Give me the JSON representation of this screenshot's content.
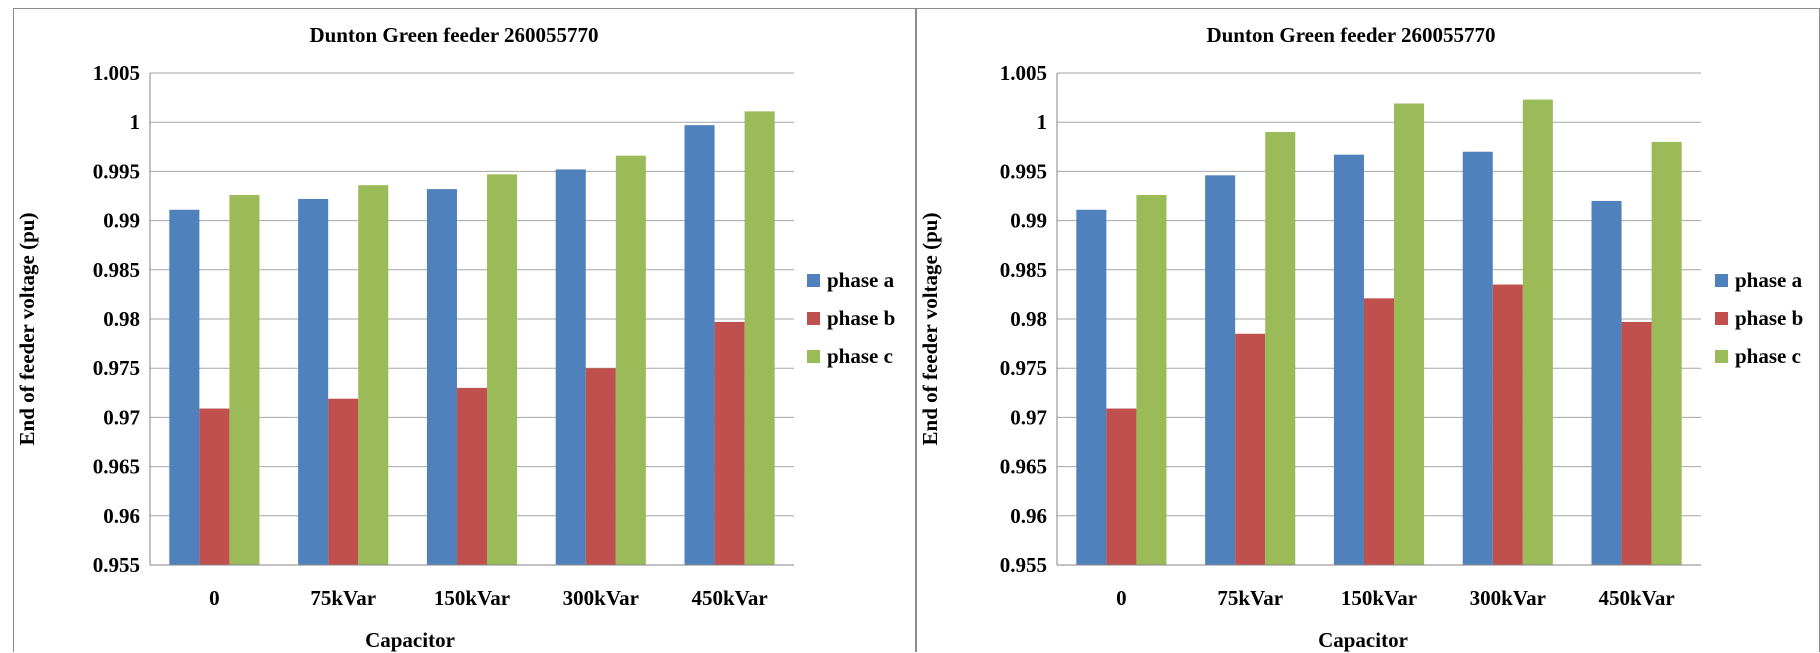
{
  "colors": {
    "phase_a": "#4F81BD",
    "phase_b": "#C0504D",
    "phase_c": "#9BBB59",
    "grid": "#A6A6A6"
  },
  "chart_data": [
    {
      "type": "bar",
      "title": "Dunton Green feeder 260055770",
      "xlabel": "Capacitor",
      "ylabel": "End of feeder voltage (pu)",
      "categories": [
        "0",
        "75kVar",
        "150kVar",
        "300kVar",
        "450kVar"
      ],
      "ylim": [
        0.955,
        1.005
      ],
      "yticks": [
        "0.955",
        "0.96",
        "0.965",
        "0.97",
        "0.975",
        "0.98",
        "0.985",
        "0.99",
        "0.995",
        "1",
        "1.005"
      ],
      "grid": true,
      "legend_position": "right",
      "series": [
        {
          "name": "phase a",
          "values": [
            0.9911,
            0.9922,
            0.9932,
            0.9952,
            0.9997
          ]
        },
        {
          "name": "phase b",
          "values": [
            0.9709,
            0.9719,
            0.973,
            0.975,
            0.9797
          ]
        },
        {
          "name": "phase c",
          "values": [
            0.9926,
            0.9936,
            0.9947,
            0.9966,
            1.0011
          ]
        }
      ]
    },
    {
      "type": "bar",
      "title": "Dunton Green feeder 260055770",
      "xlabel": "Capacitor",
      "ylabel": "End of feeder voltage (pu)",
      "categories": [
        "0",
        "75kVar",
        "150kVar",
        "300kVar",
        "450kVar"
      ],
      "ylim": [
        0.955,
        1.005
      ],
      "yticks": [
        "0.955",
        "0.96",
        "0.965",
        "0.97",
        "0.975",
        "0.98",
        "0.985",
        "0.99",
        "0.995",
        "1",
        "1.005"
      ],
      "grid": true,
      "legend_position": "right",
      "series": [
        {
          "name": "phase a",
          "values": [
            0.9911,
            0.9946,
            0.9967,
            0.997,
            0.992
          ]
        },
        {
          "name": "phase b",
          "values": [
            0.9709,
            0.9785,
            0.9821,
            0.9835,
            0.9797
          ]
        },
        {
          "name": "phase c",
          "values": [
            0.9926,
            0.999,
            1.0019,
            1.0023,
            0.998
          ]
        }
      ]
    }
  ]
}
